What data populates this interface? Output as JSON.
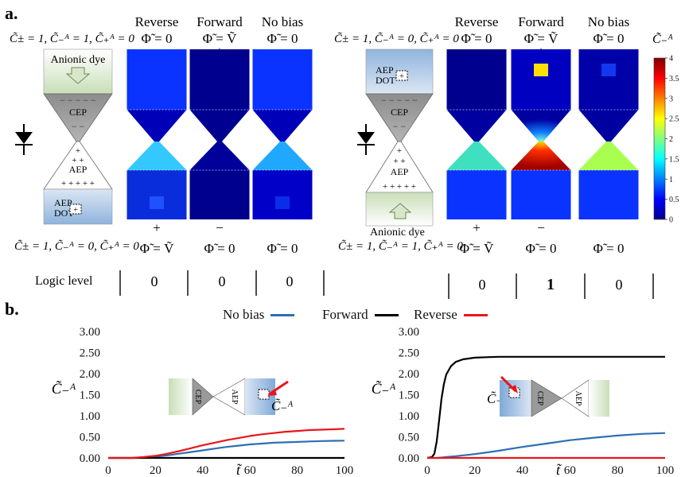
{
  "panel_a": {
    "label": "a.",
    "col_headers": [
      "Reverse",
      "Forward",
      "No bias"
    ],
    "left": {
      "top_condition": "C̃± = 1, C̃₋ᴬ = 1, C̃₊ᴬ = 0",
      "top_potentials": [
        "Φ̃ = 0",
        "Φ̃ = Ṽ",
        "Φ̃ = 0"
      ],
      "top_signs": [
        "−",
        "+",
        ""
      ],
      "dye_label": "Anionic dye",
      "cep_label": "CEP",
      "aep_label": "AEP",
      "dot_label": "AEP DOT",
      "bottom_signs": [
        "+",
        "−",
        ""
      ],
      "bottom_condition": "C̃± = 1, C̃₋ᴬ = 0, C̃₊ᴬ = 0",
      "bottom_potentials": [
        "Φ̃ = Ṽ",
        "Φ̃ = 0",
        "Φ̃ = 0"
      ]
    },
    "right": {
      "top_condition": "C̃± = 1, C̃₋ᴬ = 0, C̃₊ᴬ = 0",
      "top_potentials": [
        "Φ̃ = 0",
        "Φ̃ = Ṽ",
        "Φ̃ = 0"
      ],
      "top_signs": [
        "−",
        "+",
        ""
      ],
      "dot_label": "AEP DOT",
      "cep_label": "CEP",
      "aep_label": "AEP",
      "dye_label": "Anionic dye",
      "bottom_signs": [
        "+",
        "−",
        ""
      ],
      "bottom_condition": "C̃± = 1, C̃₋ᴬ = 1, C̃₊ᴬ = 0",
      "bottom_potentials": [
        "Φ̃ = Ṽ",
        "Φ̃ = 0",
        "Φ̃ = 0"
      ]
    },
    "colorbar": {
      "title": "C̃₋ᴬ",
      "ticks": [
        "4",
        "3.5",
        "3",
        "2.5",
        "2",
        "1.5",
        "1",
        "0.5",
        "0"
      ],
      "colors": [
        "#7f0000",
        "#ff0000",
        "#ff8000",
        "#ffff00",
        "#80ff80",
        "#00ffff",
        "#0080ff",
        "#0000ff",
        "#00008f"
      ]
    },
    "logic": {
      "label": "Logic level",
      "left_values": [
        "0",
        "0",
        "0"
      ],
      "right_values": [
        "0",
        "1",
        "0"
      ]
    }
  },
  "panel_b": {
    "label": "b.",
    "legend": [
      {
        "name": "No bias",
        "color": "#2e6eb5"
      },
      {
        "name": "Forward",
        "color": "#000000"
      },
      {
        "name": "Reverse",
        "color": "#e8161b"
      }
    ],
    "inset_left": {
      "cep": "CEP",
      "aep": "AEP"
    },
    "inset_right": {
      "cep": "CEP",
      "aep": "AEP"
    }
  },
  "chart_data": [
    {
      "type": "line",
      "xlabel": "t̃",
      "ylabel": "C̃₋ᴬ",
      "xlim": [
        0,
        100
      ],
      "ylim": [
        0,
        3
      ],
      "xticks": [
        "0",
        "20",
        "40",
        "60",
        "80",
        "100"
      ],
      "yticks": [
        "0.00",
        "0.50",
        "1.00",
        "1.50",
        "2.00",
        "2.50",
        "3.00"
      ],
      "x": [
        0,
        5,
        10,
        15,
        20,
        25,
        30,
        35,
        40,
        45,
        50,
        55,
        60,
        65,
        70,
        75,
        80,
        85,
        90,
        95,
        100
      ],
      "series": [
        {
          "name": "No bias",
          "color": "#2e6eb5",
          "values": [
            0,
            0,
            0,
            0.01,
            0.03,
            0.06,
            0.1,
            0.14,
            0.18,
            0.22,
            0.26,
            0.29,
            0.32,
            0.34,
            0.36,
            0.37,
            0.38,
            0.39,
            0.4,
            0.405,
            0.41
          ]
        },
        {
          "name": "Forward",
          "color": "#000000",
          "values": [
            0,
            0,
            0,
            0,
            0,
            0,
            0,
            0,
            0,
            0,
            0,
            0,
            0,
            0,
            0,
            0,
            0,
            0,
            0,
            0,
            0
          ]
        },
        {
          "name": "Reverse",
          "color": "#e8161b",
          "values": [
            0,
            0,
            0,
            0.02,
            0.05,
            0.1,
            0.16,
            0.23,
            0.3,
            0.36,
            0.42,
            0.47,
            0.52,
            0.56,
            0.59,
            0.62,
            0.64,
            0.66,
            0.67,
            0.68,
            0.69
          ]
        }
      ]
    },
    {
      "type": "line",
      "xlabel": "t̃",
      "ylabel": "C̃₋ᴬ",
      "xlim": [
        0,
        100
      ],
      "ylim": [
        0,
        3
      ],
      "xticks": [
        "0",
        "20",
        "40",
        "60",
        "80",
        "100"
      ],
      "yticks": [
        "0.00",
        "0.50",
        "1.00",
        "1.50",
        "2.00",
        "2.50",
        "3.00"
      ],
      "x": [
        0,
        2,
        3,
        4,
        5,
        6,
        7,
        8,
        10,
        12,
        15,
        20,
        25,
        30,
        40,
        50,
        60,
        70,
        80,
        90,
        100
      ],
      "series": [
        {
          "name": "No bias",
          "color": "#2e6eb5",
          "values": [
            0,
            0,
            0,
            0,
            0.005,
            0.01,
            0.015,
            0.02,
            0.03,
            0.04,
            0.06,
            0.09,
            0.13,
            0.17,
            0.26,
            0.34,
            0.42,
            0.48,
            0.53,
            0.57,
            0.59
          ]
        },
        {
          "name": "Forward",
          "color": "#000000",
          "values": [
            0,
            0.02,
            0.1,
            0.4,
            0.9,
            1.4,
            1.75,
            1.98,
            2.18,
            2.28,
            2.34,
            2.38,
            2.39,
            2.4,
            2.4,
            2.4,
            2.4,
            2.4,
            2.4,
            2.4,
            2.4
          ]
        },
        {
          "name": "Reverse",
          "color": "#e8161b",
          "values": [
            0,
            0,
            0,
            0,
            0,
            0,
            0,
            0,
            0,
            0,
            0,
            0,
            0,
            0,
            0,
            0,
            0,
            0,
            0,
            0,
            0
          ]
        }
      ]
    }
  ]
}
